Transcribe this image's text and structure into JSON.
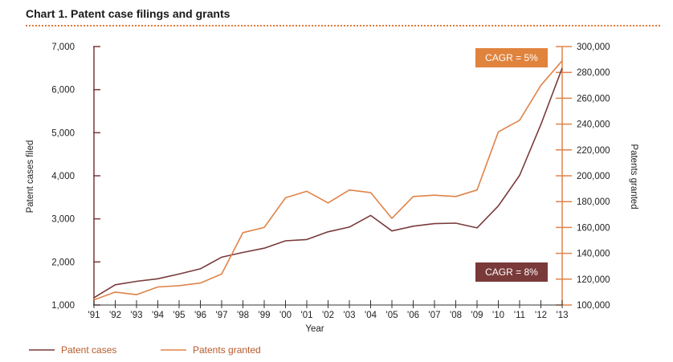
{
  "chart_data": {
    "type": "line",
    "title": "Chart 1. Patent case filings and grants",
    "xlabel": "Year",
    "ylabel_left": "Patent cases filed",
    "ylabel_right": "Patents granted",
    "ylim_left": [
      1000,
      7000
    ],
    "ylim_right": [
      100000,
      300000
    ],
    "yticks_left": [
      "1,000",
      "2,000",
      "3,000",
      "4,000",
      "5,000",
      "6,000",
      "7,000"
    ],
    "yticks_right": [
      "100,000",
      "120,000",
      "140,000",
      "160,000",
      "180,000",
      "200,000",
      "220,000",
      "240,000",
      "260,000",
      "280,000",
      "300,000"
    ],
    "x": [
      "'91",
      "'92",
      "'93",
      "'94",
      "'95",
      "'96",
      "'97",
      "'98",
      "'99",
      "'00",
      "'01",
      "'02",
      "'03",
      "'04",
      "'05",
      "'06",
      "'07",
      "'08",
      "'09",
      "'10",
      "'11",
      "'12",
      "'13"
    ],
    "grid": false,
    "legend_position": "bottom-left",
    "series": [
      {
        "name": "Patent cases",
        "axis": "left",
        "color": "#7a3a3a",
        "values": [
          1170,
          1470,
          1550,
          1610,
          1720,
          1840,
          2110,
          2220,
          2320,
          2490,
          2520,
          2700,
          2810,
          3080,
          2720,
          2830,
          2890,
          2900,
          2790,
          3300,
          4010,
          5190,
          6500
        ]
      },
      {
        "name": "Patents granted",
        "axis": "right",
        "color": "#e0834a",
        "values": [
          104000,
          110000,
          108000,
          114000,
          115000,
          117000,
          124000,
          156000,
          160000,
          183000,
          188000,
          179000,
          189000,
          187000,
          167000,
          184000,
          185000,
          184000,
          189000,
          234000,
          243000,
          270000,
          289000
        ]
      }
    ],
    "annotations": [
      {
        "text": "CAGR = 5%",
        "color": "#e0833d"
      },
      {
        "text": "CAGR = 8%",
        "color": "#7a3a3a"
      }
    ]
  }
}
